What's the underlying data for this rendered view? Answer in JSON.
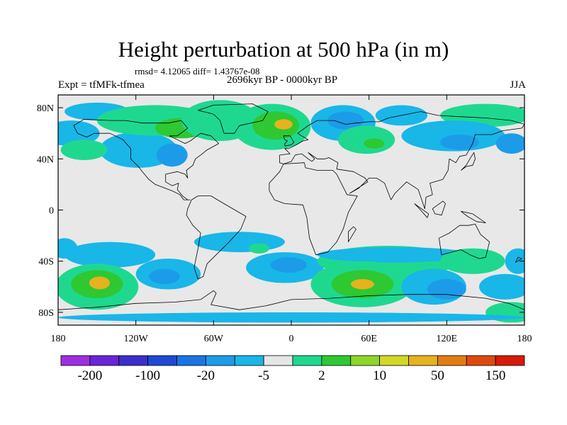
{
  "map": {
    "title": "Height perturbation at 500 hPa (in m)",
    "stats_text": "rmsd= 4.12065  diff= 1.43767e-08",
    "left_label": "Expt = tfMFk-tfmea",
    "center_label": "2696kyr BP - 0000kyr BP",
    "right_label": "JJA",
    "projection": "cylindrical equidistant",
    "background_color": "#e8e8e8",
    "lon_range": [
      -180,
      180
    ],
    "lat_range": [
      -90,
      90
    ],
    "y_ticks": [
      {
        "lat": 80,
        "label": "80N"
      },
      {
        "lat": 40,
        "label": "40N"
      },
      {
        "lat": 0,
        "label": "0"
      },
      {
        "lat": -40,
        "label": "40S"
      },
      {
        "lat": -80,
        "label": "80S"
      }
    ],
    "x_ticks": [
      {
        "lon": -180,
        "label": "180"
      },
      {
        "lon": -120,
        "label": "120W"
      },
      {
        "lon": -60,
        "label": "60W"
      },
      {
        "lon": 0,
        "label": "0"
      },
      {
        "lon": 60,
        "label": "60E"
      },
      {
        "lon": 120,
        "label": "120E"
      },
      {
        "lon": 180,
        "label": "180"
      }
    ],
    "colorbar": {
      "colors": [
        "#9f2fe0",
        "#6a24d6",
        "#3c2ecc",
        "#1f48d4",
        "#1b74e4",
        "#1c9ce8",
        "#19b6e8",
        "#e6e6e6",
        "#1fd890",
        "#2ec832",
        "#8ed62a",
        "#d2d826",
        "#e6b21e",
        "#e27c12",
        "#de4a0e",
        "#d81a08"
      ],
      "labels": [
        {
          "after_bin": 1,
          "text": "-200"
        },
        {
          "after_bin": 3,
          "text": "-100"
        },
        {
          "after_bin": 5,
          "text": "-20"
        },
        {
          "after_bin": 7,
          "text": "-5"
        },
        {
          "after_bin": 9,
          "text": "2"
        },
        {
          "after_bin": 11,
          "text": "10"
        },
        {
          "after_bin": 13,
          "text": "50"
        },
        {
          "after_bin": 15,
          "text": "150"
        }
      ]
    },
    "anomaly_regions": [
      {
        "lon": -170,
        "lat": 60,
        "rlon": 22,
        "rlat": 10,
        "level": -5
      },
      {
        "lon": -150,
        "lat": 77,
        "rlon": 25,
        "rlat": 7,
        "level": -5
      },
      {
        "lon": -118,
        "lat": 47,
        "rlon": 30,
        "rlat": 14,
        "level": -5
      },
      {
        "lon": -92,
        "lat": 43,
        "rlon": 12,
        "rlat": 9,
        "level": -20
      },
      {
        "lon": -160,
        "lat": 47,
        "rlon": 18,
        "rlat": 8,
        "level": 2
      },
      {
        "lon": -135,
        "lat": 72,
        "rlon": 12,
        "rlat": 6,
        "level": 2
      },
      {
        "lon": -105,
        "lat": 70,
        "rlon": 45,
        "rlat": 12,
        "level": 2
      },
      {
        "lon": -85,
        "lat": 64,
        "rlon": 20,
        "rlat": 8,
        "level": 10
      },
      {
        "lon": -55,
        "lat": 70,
        "rlon": 30,
        "rlat": 16,
        "level": 2
      },
      {
        "lon": -15,
        "lat": 65,
        "rlon": 30,
        "rlat": 18,
        "level": 2
      },
      {
        "lon": -12,
        "lat": 66,
        "rlon": 18,
        "rlat": 11,
        "level": 10
      },
      {
        "lon": -6,
        "lat": 67,
        "rlon": 7,
        "rlat": 4,
        "level": 50
      },
      {
        "lon": 40,
        "lat": 68,
        "rlon": 25,
        "rlat": 14,
        "level": -5
      },
      {
        "lon": 42,
        "lat": 70,
        "rlon": 14,
        "rlat": 7,
        "level": -20
      },
      {
        "lon": 58,
        "lat": 55,
        "rlon": 22,
        "rlat": 11,
        "level": 2
      },
      {
        "lon": 64,
        "lat": 52,
        "rlon": 8,
        "rlat": 4,
        "level": 10
      },
      {
        "lon": 85,
        "lat": 74,
        "rlon": 20,
        "rlat": 8,
        "level": -5
      },
      {
        "lon": 150,
        "lat": 74,
        "rlon": 35,
        "rlat": 9,
        "level": 2
      },
      {
        "lon": 125,
        "lat": 58,
        "rlon": 40,
        "rlat": 12,
        "level": -5
      },
      {
        "lon": 130,
        "lat": 53,
        "rlon": 15,
        "rlat": 6,
        "level": -20
      },
      {
        "lon": 170,
        "lat": 52,
        "rlon": 12,
        "rlat": 8,
        "level": -20
      },
      {
        "lon": -175,
        "lat": -30,
        "rlon": 10,
        "rlat": 8,
        "level": -5
      },
      {
        "lon": -140,
        "lat": -35,
        "rlon": 35,
        "rlat": 10,
        "level": -5
      },
      {
        "lon": -150,
        "lat": -60,
        "rlon": 32,
        "rlat": 18,
        "level": 2
      },
      {
        "lon": -150,
        "lat": -58,
        "rlon": 20,
        "rlat": 11,
        "level": 10
      },
      {
        "lon": -148,
        "lat": -57,
        "rlon": 8,
        "rlat": 5,
        "level": 50
      },
      {
        "lon": -95,
        "lat": -50,
        "rlon": 25,
        "rlat": 12,
        "level": -5
      },
      {
        "lon": -98,
        "lat": -52,
        "rlon": 12,
        "rlat": 6,
        "level": -20
      },
      {
        "lon": -40,
        "lat": -25,
        "rlon": 35,
        "rlat": 8,
        "level": -5
      },
      {
        "lon": -5,
        "lat": -45,
        "rlon": 30,
        "rlat": 12,
        "level": -5
      },
      {
        "lon": -2,
        "lat": -43,
        "rlon": 14,
        "rlat": 6,
        "level": -20
      },
      {
        "lon": -25,
        "lat": -30,
        "rlon": 8,
        "rlat": 4,
        "level": 2
      },
      {
        "lon": 75,
        "lat": -40,
        "rlon": 55,
        "rlat": 12,
        "level": 2
      },
      {
        "lon": 80,
        "lat": -35,
        "rlon": 60,
        "rlat": 6,
        "level": -5
      },
      {
        "lon": 55,
        "lat": -58,
        "rlon": 40,
        "rlat": 18,
        "level": 2
      },
      {
        "lon": 55,
        "lat": -58,
        "rlon": 24,
        "rlat": 11,
        "level": 10
      },
      {
        "lon": 55,
        "lat": -58,
        "rlon": 9,
        "rlat": 4,
        "level": 50
      },
      {
        "lon": 110,
        "lat": -60,
        "rlon": 25,
        "rlat": 14,
        "level": -5
      },
      {
        "lon": 120,
        "lat": -62,
        "rlon": 15,
        "rlat": 8,
        "level": -20
      },
      {
        "lon": 140,
        "lat": -40,
        "rlon": 25,
        "rlat": 10,
        "level": 2
      },
      {
        "lon": 170,
        "lat": -80,
        "rlon": 20,
        "rlat": 8,
        "level": 2
      },
      {
        "lon": 165,
        "lat": -60,
        "rlon": 20,
        "rlat": 10,
        "level": -5
      },
      {
        "lon": 175,
        "lat": -40,
        "rlon": 10,
        "rlat": 10,
        "level": -5
      },
      {
        "lon": 0,
        "lat": -84,
        "rlon": 180,
        "rlat": 4,
        "level": -5
      }
    ]
  }
}
